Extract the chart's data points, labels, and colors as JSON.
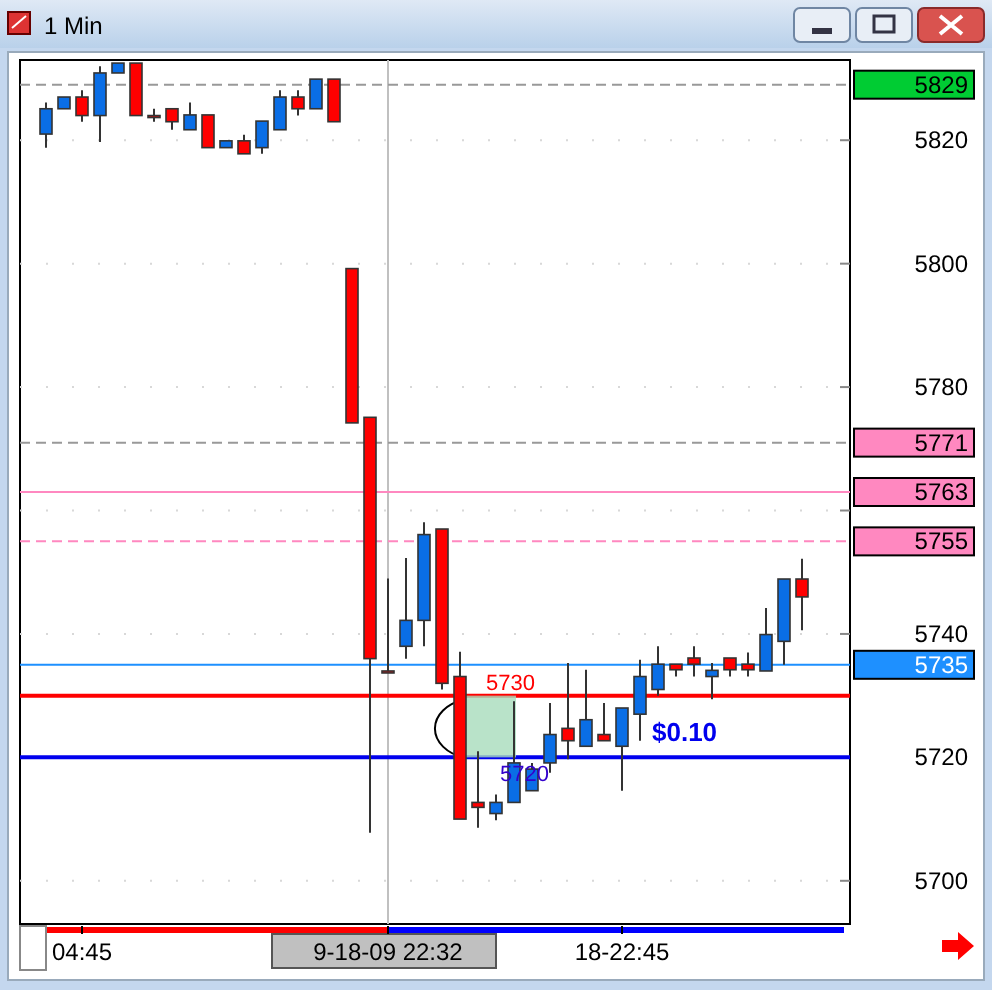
{
  "chart_data": {
    "type": "candlestick",
    "title": "1 Min",
    "categories": [
      null,
      null,
      "04:45",
      null,
      null,
      null,
      null,
      null,
      null,
      null,
      null,
      null,
      null,
      null,
      null,
      null,
      null,
      null,
      null,
      "9-18-09 22:32",
      null,
      null,
      null,
      null,
      null,
      null,
      null,
      null,
      null,
      null,
      null,
      null,
      "18-22:45",
      null,
      null,
      null,
      null,
      null,
      null,
      null,
      null,
      null,
      null
    ],
    "ohlc": [
      [
        5821.0,
        5826.1,
        5818.8,
        5825.1
      ],
      [
        5825.1,
        5827.0,
        5825.1,
        5827.0
      ],
      [
        5827.0,
        5828.1,
        5823.0,
        5824.0
      ],
      [
        5824.0,
        5832.0,
        5819.7,
        5830.9
      ],
      [
        5830.9,
        5832.5,
        5830.9,
        5832.5
      ],
      [
        5832.5,
        5832.5,
        5824.0,
        5824.0
      ],
      [
        5824.0,
        5825.1,
        5823.0,
        5824.0
      ],
      [
        5825.1,
        5825.1,
        5821.7,
        5823.0
      ],
      [
        5821.7,
        5826.1,
        5821.7,
        5824.1
      ],
      [
        5824.1,
        5824.1,
        5818.8,
        5818.8
      ],
      [
        5818.8,
        5819.9,
        5818.8,
        5819.9
      ],
      [
        5819.9,
        5820.9,
        5817.8,
        5817.8
      ],
      [
        5818.8,
        5823.1,
        5817.8,
        5823.1
      ],
      [
        5821.7,
        5828.1,
        5821.7,
        5827.0
      ],
      [
        5827.0,
        5828.1,
        5824.0,
        5825.1
      ],
      [
        5825.1,
        5829.9,
        5825.1,
        5829.9
      ],
      [
        5829.9,
        5829.9,
        5823.0,
        5823.0
      ],
      [
        5799.2,
        5799.2,
        5774.2,
        5774.2
      ],
      [
        5775.1,
        5775.1,
        5707.8,
        5736.0
      ],
      [
        5734.0,
        5749.0,
        5734.0,
        5734.0
      ],
      [
        5738.0,
        5752.3,
        5736.0,
        5742.2
      ],
      [
        5742.2,
        5758.1,
        5738.0,
        5756.1
      ],
      [
        5757.0,
        5757.0,
        5731.0,
        5732.0
      ],
      [
        5733.1,
        5737.1,
        5710.0,
        5710.0
      ],
      [
        5712.7,
        5721.0,
        5708.6,
        5711.9
      ],
      [
        5710.9,
        5714.0,
        5709.8,
        5712.7
      ],
      [
        5712.7,
        5729.1,
        5712.7,
        5719.1
      ],
      [
        5714.6,
        5719.1,
        5714.6,
        5718.1
      ],
      [
        5719.1,
        5728.8,
        5717.5,
        5723.7
      ],
      [
        5724.7,
        5735.3,
        5719.7,
        5722.7
      ],
      [
        5721.8,
        5734.2,
        5721.8,
        5726.1
      ],
      [
        5723.7,
        5728.8,
        5722.7,
        5722.7
      ],
      [
        5721.8,
        5728.0,
        5714.6,
        5728.0
      ],
      [
        5727.0,
        5735.8,
        5722.7,
        5733.1
      ],
      [
        5731.0,
        5738.0,
        5730.0,
        5735.1
      ],
      [
        5735.1,
        5735.1,
        5733.1,
        5734.2
      ],
      [
        5736.1,
        5738.0,
        5733.1,
        5735.1
      ],
      [
        5733.1,
        5735.3,
        5729.4,
        5734.1
      ],
      [
        5736.1,
        5736.1,
        5733.1,
        5734.2
      ],
      [
        5735.1,
        5737.0,
        5733.1,
        5734.2
      ],
      [
        5734.0,
        5744.2,
        5734.0,
        5739.9
      ],
      [
        5738.8,
        5748.9,
        5735.0,
        5748.9
      ],
      [
        5748.9,
        5752.2,
        5740.6,
        5746.0
      ]
    ],
    "colors": [
      "#0a6ee6",
      "#0a6ee6",
      "#ff0000",
      "#0a6ee6",
      "#0a6ee6",
      "#ff0000",
      "#ff0000",
      "#ff0000",
      "#0a6ee6",
      "#ff0000",
      "#0a6ee6",
      "#ff0000",
      "#0a6ee6",
      "#0a6ee6",
      "#ff0000",
      "#0a6ee6",
      "#ff0000",
      "#ff0000",
      "#ff0000",
      "#ff0000",
      "#0a6ee6",
      "#0a6ee6",
      "#ff0000",
      "#ff0000",
      "#ff0000",
      "#0a6ee6",
      "#0a6ee6",
      "#0a6ee6",
      "#0a6ee6",
      "#ff0000",
      "#0a6ee6",
      "#ff0000",
      "#0a6ee6",
      "#0a6ee6",
      "#0a6ee6",
      "#ff0000",
      "#ff0000",
      "#0a6ee6",
      "#ff0000",
      "#ff0000",
      "#0a6ee6",
      "#0a6ee6",
      "#ff0000"
    ],
    "ylim": [
      5693,
      5833
    ],
    "yticks": [
      5700,
      5720,
      5740,
      {
        "value": 5760,
        "label": null
      },
      5780,
      5800,
      5820
    ],
    "grid": true,
    "ref_lines": [
      {
        "axis": "y",
        "value": 5829,
        "label": "5829",
        "color": "#999999",
        "line_style": "dashed"
      },
      {
        "axis": "y",
        "value": 5771,
        "label": "5771",
        "color": "#999999",
        "line_style": "dashed"
      },
      {
        "axis": "y",
        "value": 5763,
        "label": "5763",
        "color": "#ff88c0",
        "line_style": "solid"
      },
      {
        "axis": "y",
        "value": 5755,
        "label": "5755",
        "color": "#ff88c0",
        "line_style": "dashed"
      },
      {
        "axis": "y",
        "value": 5735,
        "label": "5735",
        "color": "#1e90ff",
        "line_style": "solid"
      },
      {
        "axis": "y",
        "value": 5730,
        "color": "#ff0000",
        "line_style": "solid"
      },
      {
        "axis": "y",
        "value": 5720,
        "color": "#0000ee",
        "line_style": "solid"
      },
      {
        "axis": "x",
        "value": "9-18-09 22:32",
        "color": "#c0c0c0",
        "line_style": "solid"
      }
    ],
    "annotations": [
      {
        "text": "5730",
        "y": 5730
      },
      {
        "text": "5720",
        "y": 5720
      },
      {
        "text": "$0.10",
        "y": 5721
      }
    ]
  }
}
